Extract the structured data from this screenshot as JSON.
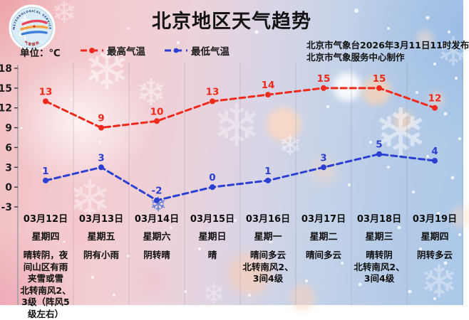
{
  "header": {
    "title": "北京地区天气趋势",
    "unit_label": "单位：℃",
    "issued_line1": "北京市气象台2026年3月11日11时发布",
    "issued_line2": "北京市气象服务中心制作",
    "logo": {
      "arc_text_top": "METEOROLOGICAL SERVICE",
      "arc_text_bottom": "气象服务"
    }
  },
  "chart_data": {
    "type": "line",
    "title": "北京地区天气趋势",
    "unit": "℃",
    "categories": [
      "03月12日",
      "03月13日",
      "03月14日",
      "03月15日",
      "03月16日",
      "03月17日",
      "03月18日",
      "03月19日"
    ],
    "series": [
      {
        "name": "最高气温",
        "color": "#ee2a1c",
        "values": [
          13,
          9,
          10,
          13,
          14,
          15,
          15,
          12
        ]
      },
      {
        "name": "最低气温",
        "color": "#2b3fd1",
        "values": [
          1,
          3,
          -2,
          0,
          1,
          3,
          5,
          4
        ]
      }
    ],
    "yticks": [
      18,
      15,
      12,
      9,
      6,
      3,
      0,
      -3
    ],
    "ylim": [
      -3,
      18
    ],
    "grid": "vertical",
    "legend_position": "top-left",
    "line_style": "dashed"
  },
  "forecast": [
    {
      "date": "03月12日",
      "weekday": "星期四",
      "weather": "晴转阴，夜间山区有雨夹雪或雪",
      "wind": "北转南风2、3级（阵风5级左右）"
    },
    {
      "date": "03月13日",
      "weekday": "星期五",
      "weather": "阴有小雨",
      "wind": ""
    },
    {
      "date": "03月14日",
      "weekday": "星期六",
      "weather": "阴转晴",
      "wind": ""
    },
    {
      "date": "03月15日",
      "weekday": "星期日",
      "weather": "晴",
      "wind": ""
    },
    {
      "date": "03月16日",
      "weekday": "星期一",
      "weather": "晴间多云",
      "wind": "北转南风2、3间4级"
    },
    {
      "date": "03月17日",
      "weekday": "星期二",
      "weather": "晴间多云",
      "wind": ""
    },
    {
      "date": "03月18日",
      "weekday": "星期三",
      "weather": "晴转阴",
      "wind": "北转南风2、3间4级"
    },
    {
      "date": "03月19日",
      "weekday": "星期四",
      "weather": "阴转多云",
      "wind": ""
    }
  ]
}
